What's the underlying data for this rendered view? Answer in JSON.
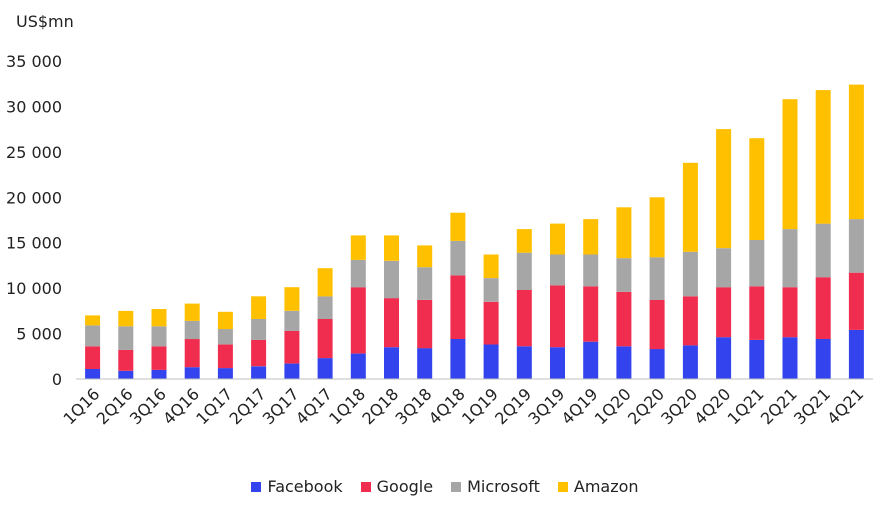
{
  "chart_data": {
    "type": "bar",
    "stacked": true,
    "unit_label": "US$mn",
    "categories": [
      "1Q16",
      "2Q16",
      "3Q16",
      "4Q16",
      "1Q17",
      "2Q17",
      "3Q17",
      "4Q17",
      "1Q18",
      "2Q18",
      "3Q18",
      "4Q18",
      "1Q19",
      "2Q19",
      "3Q19",
      "4Q19",
      "1Q20",
      "2Q20",
      "3Q20",
      "4Q20",
      "1Q21",
      "2Q21",
      "3Q21",
      "4Q21"
    ],
    "y_ticks": [
      "0",
      "5 000",
      "10 000",
      "15 000",
      "20 000",
      "25 000",
      "30 000",
      "35 000"
    ],
    "ylim": [
      0,
      35000
    ],
    "grid": false,
    "legend_position": "bottom",
    "series": [
      {
        "name": "Facebook",
        "color": "#3344ee",
        "values": [
          1100,
          900,
          1000,
          1300,
          1200,
          1400,
          1700,
          2300,
          2800,
          3500,
          3400,
          4400,
          3800,
          3600,
          3500,
          4100,
          3600,
          3300,
          3700,
          4600,
          4300,
          4600,
          4400,
          5400
        ]
      },
      {
        "name": "Google",
        "color": "#f02d4e",
        "values": [
          2500,
          2300,
          2600,
          3100,
          2600,
          2900,
          3600,
          4300,
          7300,
          5400,
          5300,
          7000,
          4700,
          6200,
          6800,
          6100,
          6000,
          5400,
          5400,
          5500,
          5900,
          5500,
          6800,
          6300
        ]
      },
      {
        "name": "Microsoft",
        "color": "#a6a6a6",
        "values": [
          2300,
          2600,
          2200,
          2000,
          1700,
          2300,
          2200,
          2500,
          3000,
          4100,
          3600,
          3800,
          2600,
          4100,
          3400,
          3500,
          3700,
          4700,
          4900,
          4300,
          5100,
          6400,
          5900,
          5900
        ]
      },
      {
        "name": "Amazon",
        "color": "#ffc000",
        "values": [
          1100,
          1700,
          1900,
          1900,
          1900,
          2500,
          2600,
          3100,
          2700,
          2800,
          2400,
          3100,
          2600,
          2600,
          3400,
          3900,
          5600,
          6600,
          9800,
          13100,
          11200,
          14300,
          14700,
          14800
        ]
      }
    ]
  }
}
